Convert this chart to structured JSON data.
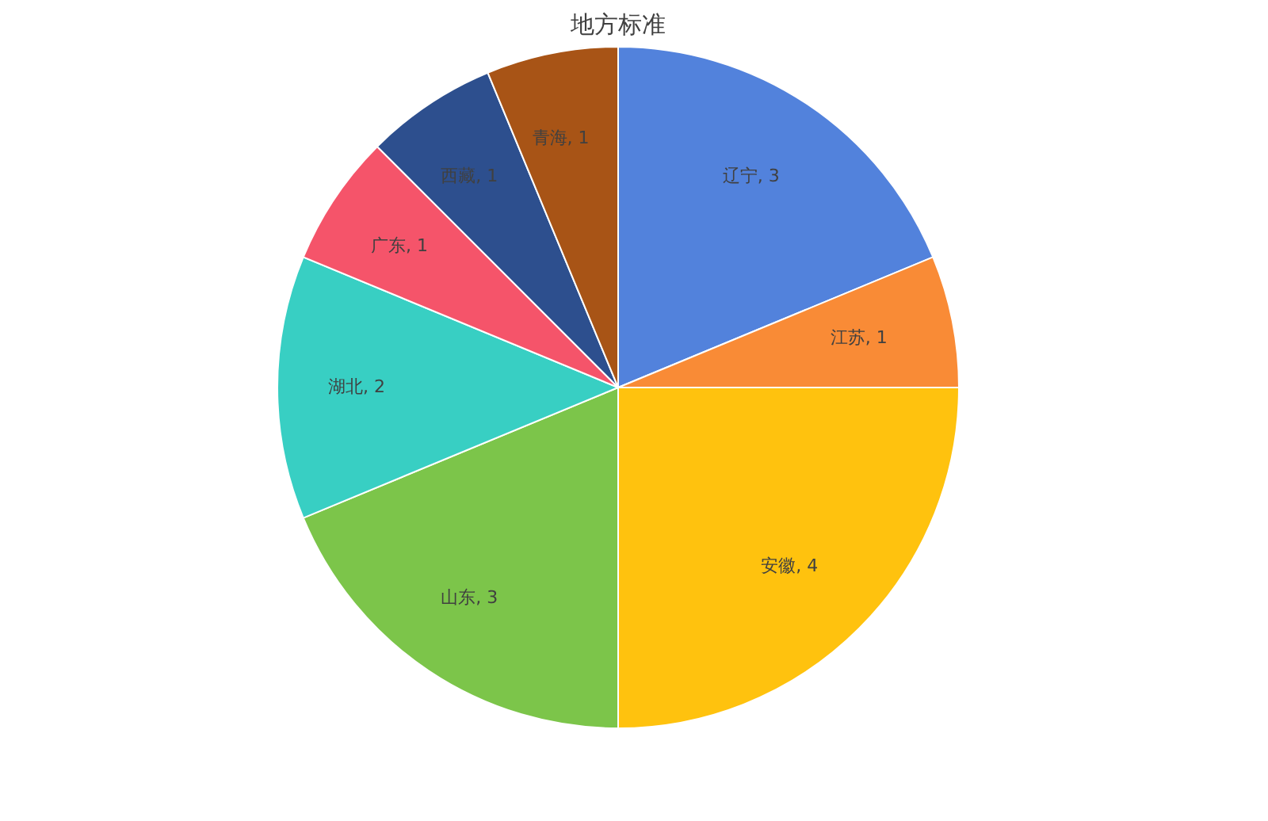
{
  "chart_data": {
    "type": "pie",
    "title": "地方标准",
    "categories": [
      "辽宁",
      "江苏",
      "安徽",
      "山东",
      "湖北",
      "广东",
      "西藏",
      "青海"
    ],
    "values": [
      3,
      1,
      4,
      3,
      2,
      1,
      1,
      1
    ],
    "colors": [
      "#5282dc",
      "#f98b36",
      "#ffc20e",
      "#7cc54a",
      "#38cfc3",
      "#f5546a",
      "#2d4f8e",
      "#a85416"
    ],
    "value_labels": [
      ", 3",
      ", 1",
      ", 4",
      ", 3",
      ", 2",
      ", 1",
      ", 1",
      ", 1"
    ],
    "legend": false
  }
}
